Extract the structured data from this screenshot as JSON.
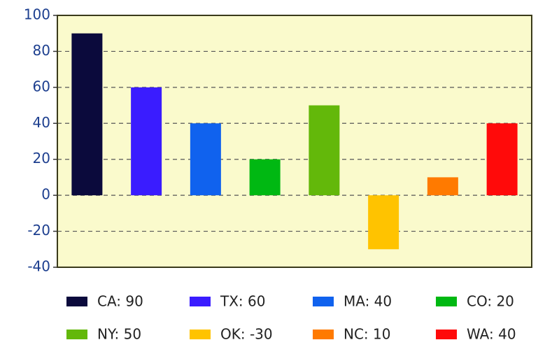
{
  "chart_data": {
    "type": "bar",
    "values": [
      90,
      60,
      40,
      20,
      50,
      -30,
      10,
      40
    ],
    "value_labels": [
      "CA: 90",
      "TX: 60",
      "MA: 40",
      "CO: 20",
      "NY: 50",
      "OK: -30",
      "NC: 10",
      "WA: 40"
    ],
    "colors": [
      "#0b0a3c",
      "#3a1cff",
      "#1062ee",
      "#00b812",
      "#63b80a",
      "#ffc300",
      "#ff7a00",
      "#ff0a0a"
    ],
    "ylim": [
      -40,
      100
    ],
    "yticks": [
      -40,
      -20,
      0,
      20,
      40,
      60,
      80,
      100
    ],
    "grid": true
  }
}
